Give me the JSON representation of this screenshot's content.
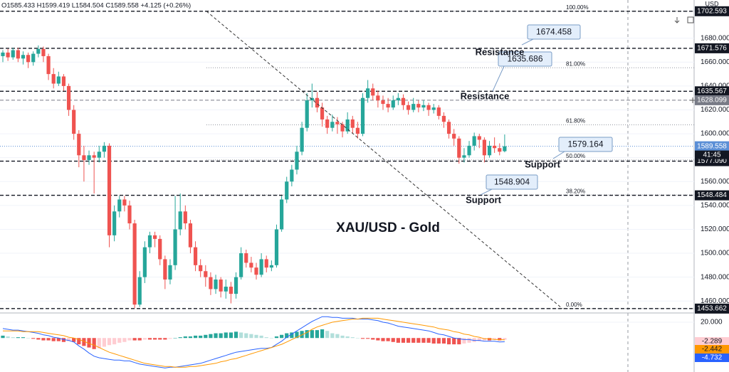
{
  "chart_data": {
    "type": "candlestick",
    "title": "XAU/USD - Gold",
    "header": "O1585.433 H1599.419 L1584.504 C1589.558 +4.125 (+0.26%)",
    "currency": "USD",
    "countdown": "41:45",
    "up_color": "#26a69a",
    "down_color": "#ef5350",
    "ylim": [
      1450,
      1712
    ],
    "yticks": [
      {
        "value": 1680,
        "label": "1680.000"
      },
      {
        "value": 1660,
        "label": "1660.000"
      },
      {
        "value": 1640,
        "label": "1640.000"
      },
      {
        "value": 1620,
        "label": "1620.000"
      },
      {
        "value": 1600,
        "label": "1600.000"
      },
      {
        "value": 1580,
        "label": "1580.000"
      },
      {
        "value": 1560,
        "label": "1560.000"
      },
      {
        "value": 1540,
        "label": "1540.000"
      },
      {
        "value": 1520,
        "label": "1520.000"
      },
      {
        "value": 1500,
        "label": "1500.000"
      },
      {
        "value": 1480,
        "label": "1480.000"
      },
      {
        "value": 1460,
        "label": "1460.000"
      }
    ],
    "grid": true,
    "candles": [
      [
        1665,
        1670,
        1660,
        1668
      ],
      [
        1668,
        1671,
        1661,
        1664
      ],
      [
        1664,
        1672,
        1662,
        1670
      ],
      [
        1670,
        1672,
        1660,
        1663
      ],
      [
        1663,
        1669,
        1658,
        1666
      ],
      [
        1666,
        1668,
        1655,
        1660
      ],
      [
        1660,
        1669,
        1657,
        1667
      ],
      [
        1667,
        1674,
        1664,
        1671
      ],
      [
        1671,
        1673,
        1660,
        1665
      ],
      [
        1665,
        1667,
        1645,
        1650
      ],
      [
        1650,
        1655,
        1638,
        1642
      ],
      [
        1642,
        1652,
        1640,
        1648
      ],
      [
        1648,
        1650,
        1636,
        1640
      ],
      [
        1640,
        1642,
        1615,
        1620
      ],
      [
        1620,
        1624,
        1595,
        1600
      ],
      [
        1600,
        1603,
        1572,
        1582
      ],
      [
        1582,
        1590,
        1560,
        1578
      ],
      [
        1578,
        1586,
        1574,
        1582
      ],
      [
        1582,
        1585,
        1550,
        1580
      ],
      [
        1580,
        1590,
        1576,
        1585
      ],
      [
        1585,
        1593,
        1580,
        1590
      ],
      [
        1590,
        1592,
        1505,
        1515
      ],
      [
        1515,
        1540,
        1510,
        1535
      ],
      [
        1535,
        1548,
        1530,
        1545
      ],
      [
        1545,
        1548,
        1535,
        1540
      ],
      [
        1540,
        1544,
        1520,
        1525
      ],
      [
        1525,
        1528,
        1454,
        1457
      ],
      [
        1457,
        1485,
        1455,
        1480
      ],
      [
        1480,
        1510,
        1475,
        1505
      ],
      [
        1505,
        1518,
        1500,
        1515
      ],
      [
        1515,
        1518,
        1505,
        1512
      ],
      [
        1512,
        1515,
        1490,
        1495
      ],
      [
        1495,
        1498,
        1470,
        1478
      ],
      [
        1478,
        1495,
        1474,
        1490
      ],
      [
        1490,
        1548,
        1486,
        1520
      ],
      [
        1520,
        1550,
        1515,
        1535
      ],
      [
        1535,
        1540,
        1520,
        1525
      ],
      [
        1525,
        1528,
        1500,
        1505
      ],
      [
        1505,
        1510,
        1485,
        1490
      ],
      [
        1490,
        1495,
        1480,
        1485
      ],
      [
        1485,
        1490,
        1472,
        1480
      ],
      [
        1480,
        1484,
        1465,
        1470
      ],
      [
        1470,
        1482,
        1466,
        1478
      ],
      [
        1478,
        1480,
        1463,
        1468
      ],
      [
        1468,
        1478,
        1462,
        1472
      ],
      [
        1472,
        1476,
        1458,
        1466
      ],
      [
        1466,
        1484,
        1462,
        1480
      ],
      [
        1480,
        1505,
        1478,
        1500
      ],
      [
        1500,
        1503,
        1488,
        1492
      ],
      [
        1492,
        1497,
        1484,
        1488
      ],
      [
        1488,
        1492,
        1478,
        1482
      ],
      [
        1482,
        1500,
        1480,
        1495
      ],
      [
        1495,
        1498,
        1484,
        1488
      ],
      [
        1488,
        1494,
        1485,
        1490
      ],
      [
        1490,
        1524,
        1488,
        1520
      ],
      [
        1520,
        1548,
        1518,
        1545
      ],
      [
        1545,
        1564,
        1542,
        1560
      ],
      [
        1560,
        1574,
        1556,
        1570
      ],
      [
        1570,
        1590,
        1566,
        1585
      ],
      [
        1585,
        1610,
        1582,
        1605
      ],
      [
        1605,
        1634,
        1602,
        1628
      ],
      [
        1628,
        1642,
        1622,
        1630
      ],
      [
        1630,
        1635,
        1618,
        1622
      ],
      [
        1622,
        1626,
        1606,
        1612
      ],
      [
        1612,
        1615,
        1600,
        1605
      ],
      [
        1605,
        1616,
        1602,
        1610
      ],
      [
        1610,
        1614,
        1600,
        1608
      ],
      [
        1608,
        1610,
        1597,
        1602
      ],
      [
        1602,
        1618,
        1600,
        1612
      ],
      [
        1612,
        1615,
        1600,
        1605
      ],
      [
        1605,
        1610,
        1596,
        1600
      ],
      [
        1600,
        1634,
        1598,
        1630
      ],
      [
        1630,
        1645,
        1626,
        1638
      ],
      [
        1638,
        1642,
        1628,
        1632
      ],
      [
        1632,
        1636,
        1622,
        1628
      ],
      [
        1628,
        1632,
        1620,
        1625
      ],
      [
        1625,
        1630,
        1618,
        1622
      ],
      [
        1622,
        1632,
        1620,
        1628
      ],
      [
        1628,
        1634,
        1624,
        1630
      ],
      [
        1630,
        1633,
        1620,
        1624
      ],
      [
        1624,
        1627,
        1616,
        1620
      ],
      [
        1620,
        1630,
        1618,
        1625
      ],
      [
        1625,
        1628,
        1618,
        1622
      ],
      [
        1622,
        1628,
        1619,
        1624
      ],
      [
        1624,
        1626,
        1615,
        1620
      ],
      [
        1620,
        1625,
        1617,
        1622
      ],
      [
        1622,
        1624,
        1612,
        1615
      ],
      [
        1615,
        1618,
        1605,
        1610
      ],
      [
        1610,
        1612,
        1596,
        1600
      ],
      [
        1600,
        1604,
        1590,
        1596
      ],
      [
        1596,
        1598,
        1575,
        1580
      ],
      [
        1580,
        1588,
        1576,
        1582
      ],
      [
        1582,
        1594,
        1580,
        1590
      ],
      [
        1590,
        1601,
        1586,
        1598
      ],
      [
        1598,
        1600,
        1588,
        1595
      ],
      [
        1595,
        1597,
        1576,
        1582
      ],
      [
        1582,
        1594,
        1580,
        1590
      ],
      [
        1590,
        1597,
        1584,
        1588
      ],
      [
        1588,
        1592,
        1582,
        1585
      ],
      [
        1585.433,
        1599.419,
        1584.504,
        1589.558
      ]
    ],
    "levels": [
      {
        "value": 1702.593,
        "label": "1702.593",
        "color": "#131722"
      },
      {
        "value": 1671.576,
        "label": "1671.576",
        "color": "#131722"
      },
      {
        "value": 1635.567,
        "label": "1635.567",
        "color": "#131722"
      },
      {
        "value": 1628.099,
        "label": "1628.099",
        "color": "#787b86"
      },
      {
        "value": 1589.558,
        "label": "1589.558",
        "color": "#5b8fd6"
      },
      {
        "value": 1577.09,
        "label": "1577.090",
        "color": "#131722"
      },
      {
        "value": 1548.484,
        "label": "1548.484",
        "color": "#131722"
      },
      {
        "value": 1453.662,
        "label": "1453.662",
        "color": "#131722"
      }
    ],
    "callouts": [
      {
        "value": 1674.458,
        "label": "1674.458"
      },
      {
        "value": 1635.686,
        "label": "1635.686"
      },
      {
        "value": 1579.164,
        "label": "1579.164"
      },
      {
        "value": 1548.904,
        "label": "1548.904"
      }
    ],
    "fib": {
      "low": 1453.662,
      "high": 1702.593,
      "levels": [
        {
          "value": 100,
          "label": "100.00%"
        },
        {
          "value": 81,
          "label": "81.00%"
        },
        {
          "value": 61.8,
          "label": "61.80%"
        },
        {
          "value": 50,
          "label": "50.00%"
        },
        {
          "value": 38.2,
          "label": "38.20%"
        },
        {
          "value": 0,
          "label": "0.00%"
        }
      ]
    },
    "annotations": [
      {
        "text": "Resistance"
      },
      {
        "text": "Resistance"
      },
      {
        "text": "Support"
      },
      {
        "text": "Support"
      }
    ],
    "macd": {
      "ylim": [
        -43,
        29
      ],
      "yticks": [
        {
          "value": 20,
          "label": "20.000"
        }
      ],
      "histogram": [
        3,
        2,
        1,
        1,
        1,
        0,
        -1,
        -2,
        -3,
        -3,
        -4,
        -4,
        -5,
        -4,
        -5,
        -8,
        -10,
        -12,
        -14,
        -13,
        -11,
        -9,
        -8,
        -6,
        -5,
        -3,
        -3,
        -3,
        -2,
        -2,
        -2,
        -2,
        -2,
        -1,
        0,
        1,
        2,
        2,
        3,
        3,
        4,
        5,
        6,
        6,
        7,
        7,
        8,
        7,
        6,
        5,
        4,
        3,
        1,
        0,
        2,
        4,
        6,
        7,
        8,
        9,
        10,
        10,
        10,
        11,
        9,
        6,
        5,
        3,
        2,
        1,
        0,
        -1,
        -1,
        -2,
        -3,
        -4,
        -4,
        -5,
        -6,
        -6,
        -6,
        -6,
        -6,
        -6,
        -6,
        -7,
        -7,
        -7,
        -8,
        -8,
        -8,
        -7,
        -6,
        -5,
        -4,
        -3,
        -3,
        -2,
        -3,
        -2.289
      ],
      "line": {
        "color": "#2962ff",
        "values": [
          12,
          11,
          10,
          10,
          9,
          8,
          7,
          6,
          4,
          3,
          1,
          0,
          -2,
          -3,
          -5,
          -10,
          -14,
          -19,
          -23,
          -25,
          -26,
          -27,
          -28,
          -28,
          -29,
          -29,
          -31,
          -33,
          -34,
          -35,
          -36,
          -37,
          -38,
          -37,
          -37,
          -36,
          -35,
          -34,
          -33,
          -32,
          -30,
          -28,
          -26,
          -24,
          -22,
          -20,
          -18,
          -17,
          -16,
          -15,
          -14,
          -13,
          -13,
          -12,
          -8,
          -4,
          1,
          5,
          9,
          13,
          17,
          21,
          24,
          27,
          27,
          26,
          26,
          25,
          25,
          25,
          24,
          24,
          24,
          23,
          22,
          20,
          19,
          17,
          15,
          14,
          13,
          12,
          11,
          10,
          9,
          7,
          5,
          4,
          2,
          0,
          -1,
          -2,
          -2,
          -3,
          -3,
          -4,
          -4,
          -4,
          -5,
          -4.732
        ]
      },
      "signal": {
        "color": "#ff9800",
        "values": [
          9,
          9,
          9,
          9,
          8,
          8,
          8,
          8,
          7,
          6,
          5,
          4,
          3,
          1,
          0,
          -2,
          -4,
          -7,
          -9,
          -12,
          -15,
          -18,
          -20,
          -22,
          -24,
          -26,
          -28,
          -30,
          -32,
          -33,
          -34,
          -35,
          -36,
          -36,
          -37,
          -37,
          -37,
          -36,
          -36,
          -35,
          -34,
          -33,
          -32,
          -30,
          -29,
          -27,
          -26,
          -24,
          -22,
          -20,
          -18,
          -16,
          -14,
          -12,
          -10,
          -8,
          -5,
          -2,
          1,
          4,
          7,
          11,
          14,
          16,
          18,
          20,
          21,
          22,
          23,
          24,
          24,
          25,
          25,
          25,
          25,
          24,
          23,
          22,
          21,
          20,
          19,
          18,
          17,
          16,
          15,
          14,
          12,
          11,
          10,
          8,
          7,
          5,
          4,
          2,
          1,
          -1,
          -1,
          -2,
          -2,
          -2.442
        ]
      }
    }
  }
}
